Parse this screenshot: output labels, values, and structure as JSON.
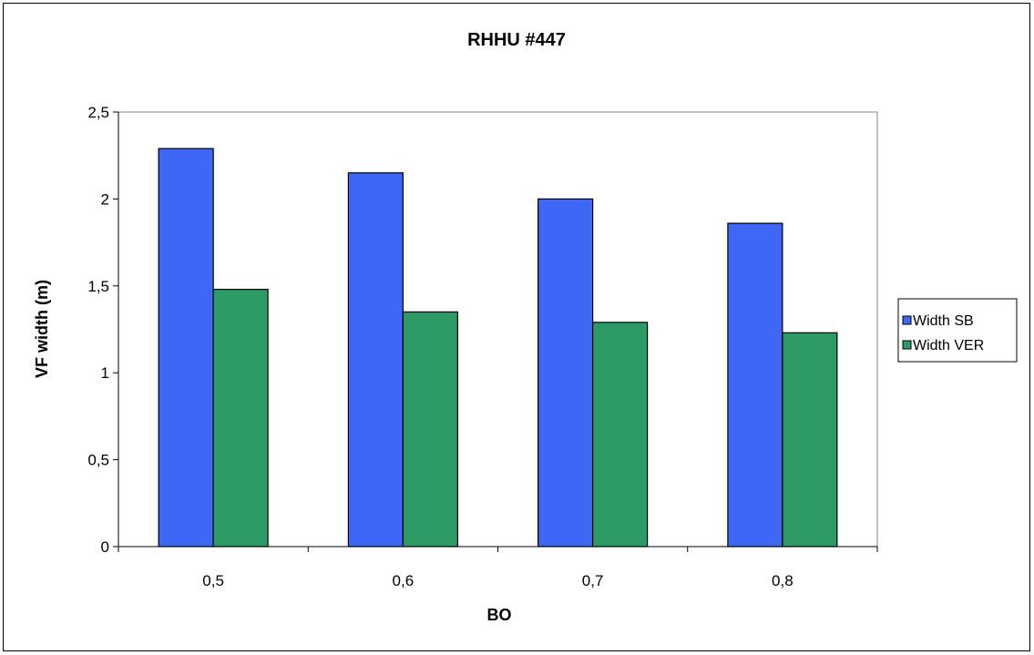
{
  "chart_data": {
    "type": "bar",
    "title": "RHHU #447",
    "xlabel": "BO",
    "ylabel": "VF width (m)",
    "categories": [
      "0,5",
      "0,6",
      "0,7",
      "0,8"
    ],
    "series": [
      {
        "name": "Width SB",
        "values": [
          2.29,
          2.15,
          2.0,
          1.86
        ],
        "color": "#3f67f5"
      },
      {
        "name": "Width VER",
        "values": [
          1.48,
          1.35,
          1.29,
          1.23
        ],
        "color": "#2e9a66"
      }
    ],
    "ylim": [
      0,
      2.5
    ],
    "yticks": [
      0,
      0.5,
      1,
      1.5,
      2,
      2.5
    ],
    "ytick_labels": [
      "0",
      "0,5",
      "1",
      "1,5",
      "2",
      "2,5"
    ],
    "grid": false,
    "legend_position": "right",
    "plot_background": "#ffffff"
  }
}
